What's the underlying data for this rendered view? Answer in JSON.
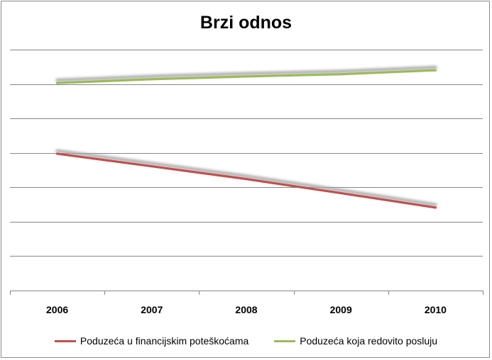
{
  "chart_data": {
    "type": "line",
    "title": "Brzi odnos",
    "categories": [
      "2006",
      "2007",
      "2008",
      "2009",
      "2010"
    ],
    "series": [
      {
        "name": "Poduzeća u financijskim poteškoćama",
        "values": [
          0.795,
          0.722,
          0.648,
          0.566,
          0.482
        ],
        "color": "#c0504d"
      },
      {
        "name": "Poduzeća koja redovito posluju",
        "values": [
          1.206,
          1.228,
          1.244,
          1.257,
          1.28
        ],
        "color": "#9bbb59"
      }
    ],
    "ylim": [
      0,
      1.4
    ],
    "y_tick_step": 0.2,
    "y_tick_labels_shown": false,
    "grid": true,
    "legend_position": "bottom",
    "line_shadow": true
  }
}
